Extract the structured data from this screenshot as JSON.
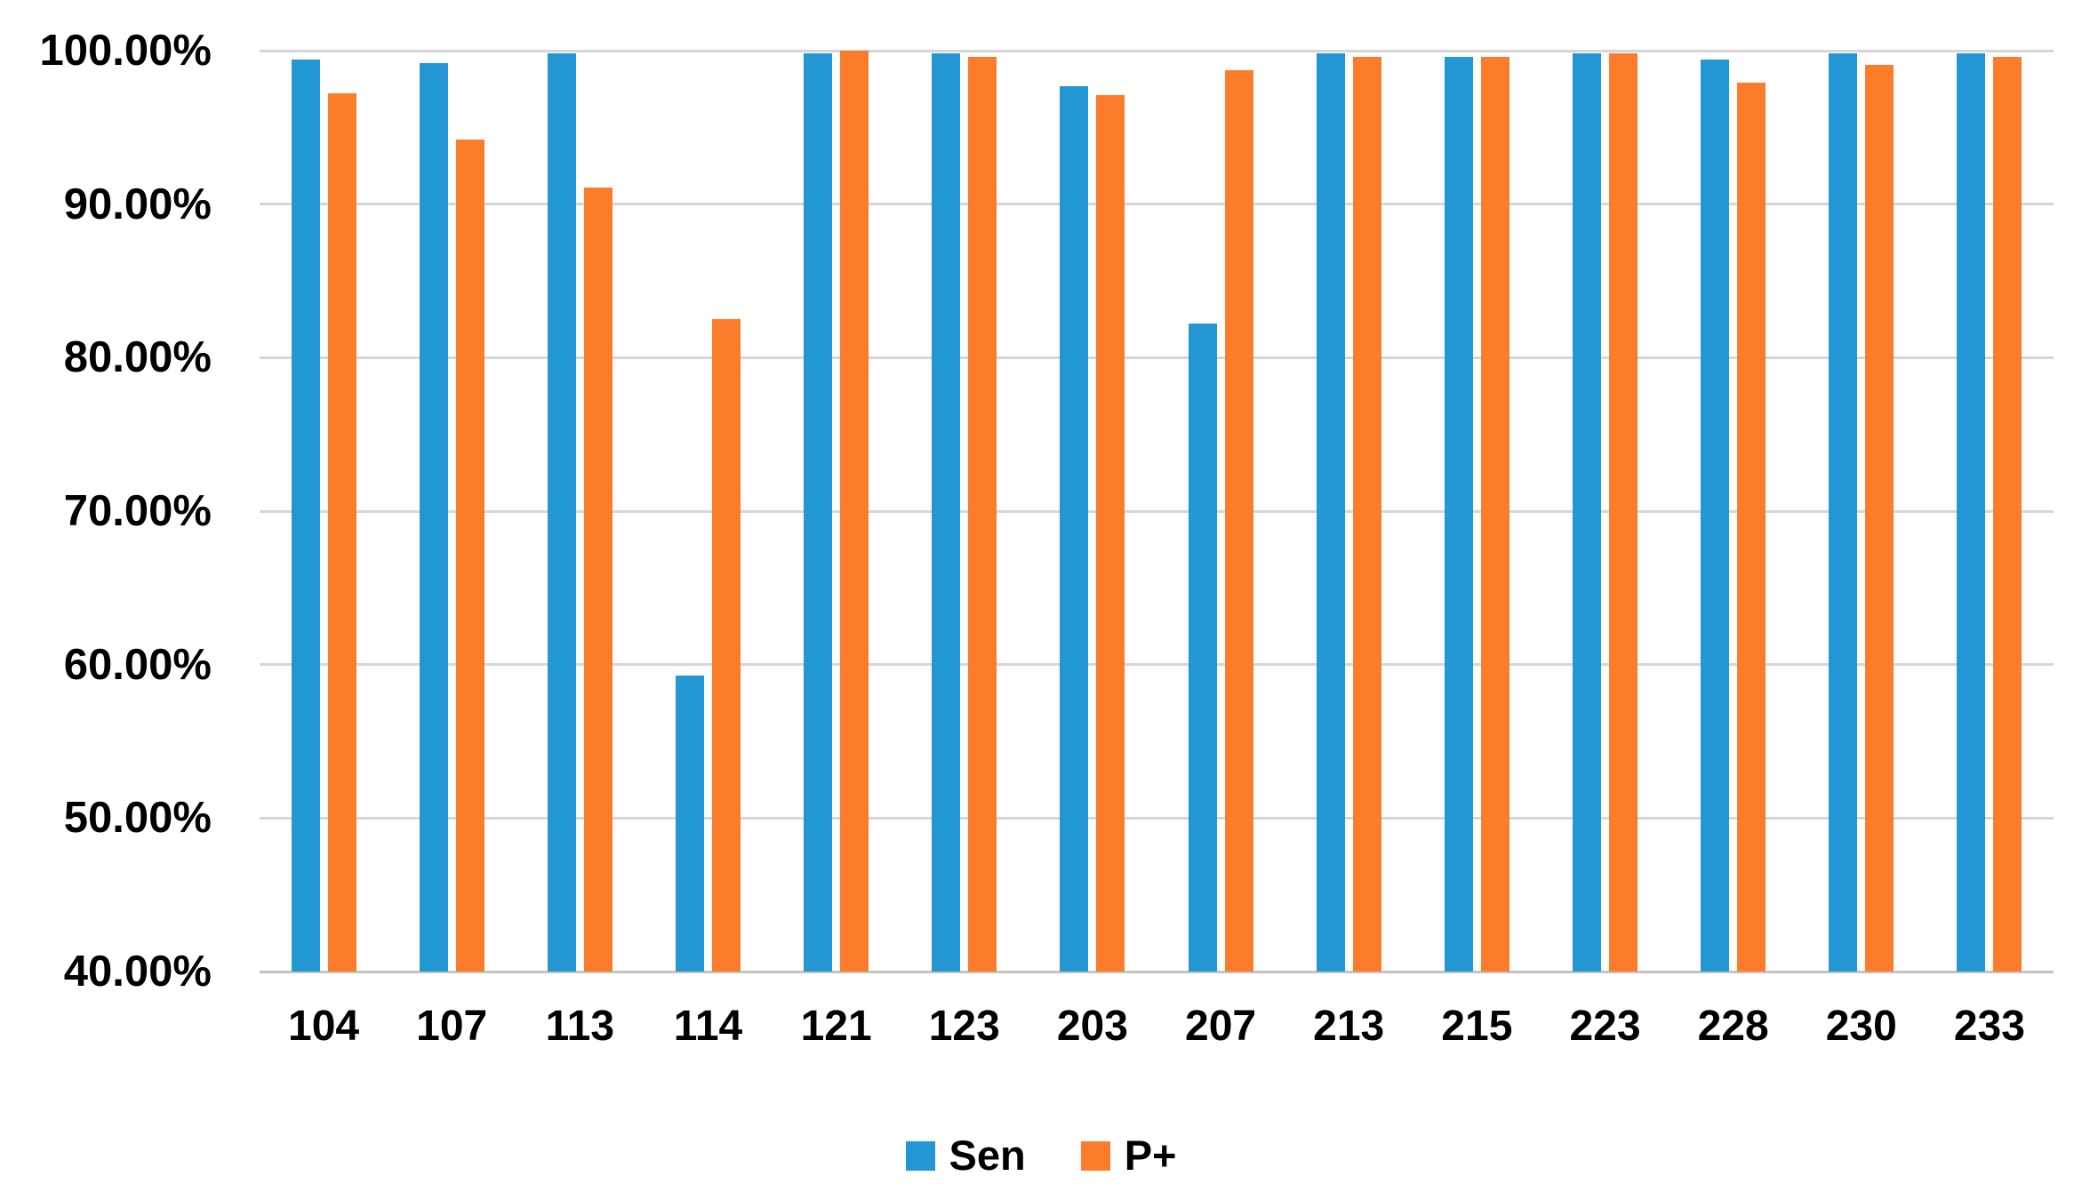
{
  "chart_data": {
    "type": "bar",
    "title": "",
    "xlabel": "",
    "ylabel": "",
    "categories": [
      "104",
      "107",
      "113",
      "114",
      "121",
      "123",
      "203",
      "207",
      "213",
      "215",
      "223",
      "228",
      "230",
      "233"
    ],
    "series": [
      {
        "name": "Sen",
        "color": "#2397D4",
        "values": [
          99.4,
          99.2,
          99.8,
          59.3,
          99.8,
          99.8,
          97.7,
          82.2,
          99.8,
          99.6,
          99.8,
          99.4,
          99.8,
          99.8
        ]
      },
      {
        "name": "P+",
        "color": "#FB7C2B",
        "values": [
          97.2,
          94.2,
          91.1,
          82.5,
          100.0,
          99.6,
          97.1,
          98.7,
          99.6,
          99.6,
          99.8,
          97.9,
          99.1,
          99.6
        ]
      }
    ],
    "ylim": [
      40,
      100
    ],
    "ytick_step": 10,
    "ytick_labels": [
      "100.00%",
      "90.00%",
      "80.00%",
      "70.00%",
      "60.00%",
      "50.00%",
      "40.00%"
    ],
    "grid": true,
    "legend_position": "bottom-center",
    "value_format": "percent"
  }
}
